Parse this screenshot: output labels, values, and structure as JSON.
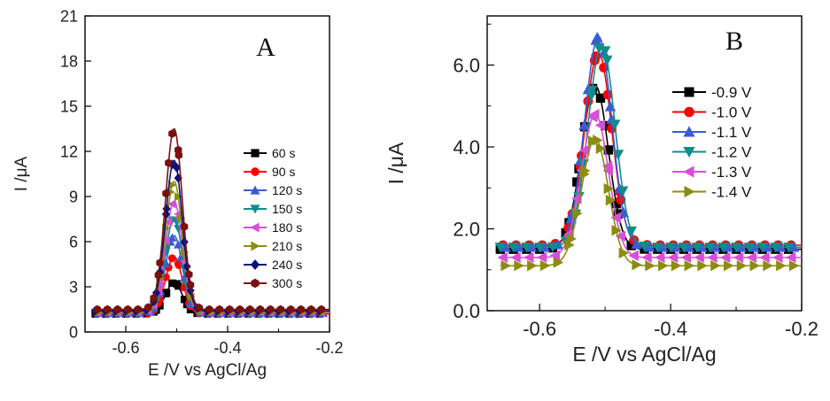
{
  "chart_data": [
    {
      "type": "line",
      "panel_label": "A",
      "xlabel": "E /V vs AgCl/Ag",
      "ylabel": "I /μA",
      "xlim": [
        -0.68,
        -0.2
      ],
      "ylim": [
        0,
        21
      ],
      "xticks": [
        -0.6,
        -0.4,
        -0.2
      ],
      "xtick_labels": [
        "-0.6",
        "-0.4",
        "-0.2"
      ],
      "yticks": [
        0,
        3,
        6,
        9,
        12,
        15,
        18,
        21
      ],
      "ytick_labels": [
        "0",
        "3",
        "6",
        "9",
        "12",
        "15",
        "18",
        "21"
      ],
      "legend_position": "center-right",
      "peak_x": -0.505,
      "series": [
        {
          "name": "60 s",
          "color": "#000000",
          "marker": "square",
          "peak": 3.3,
          "baseline": 1.2
        },
        {
          "name": "90 s",
          "color": "#ff0000",
          "marker": "circle",
          "peak": 5.0,
          "baseline": 1.2
        },
        {
          "name": "120 s",
          "color": "#3b5bd6",
          "marker": "triangle-up",
          "peak": 6.4,
          "baseline": 1.25
        },
        {
          "name": "150 s",
          "color": "#0f8c8c",
          "marker": "triangle-down",
          "peak": 7.6,
          "baseline": 1.3
        },
        {
          "name": "180 s",
          "color": "#d64fd6",
          "marker": "triangle-left",
          "peak": 8.7,
          "baseline": 1.3
        },
        {
          "name": "210 s",
          "color": "#8c8c10",
          "marker": "triangle-right",
          "peak": 10.0,
          "baseline": 1.35
        },
        {
          "name": "240 s",
          "color": "#10107a",
          "marker": "diamond",
          "peak": 11.4,
          "baseline": 1.4
        },
        {
          "name": "300 s",
          "color": "#7a1010",
          "marker": "hexagon",
          "peak": 13.5,
          "baseline": 1.5
        }
      ]
    },
    {
      "type": "line",
      "panel_label": "B",
      "xlabel": "E /V vs AgCl/Ag",
      "ylabel": "I /μA",
      "xlim": [
        -0.68,
        -0.2
      ],
      "ylim": [
        0,
        7.2
      ],
      "xticks": [
        -0.6,
        -0.4,
        -0.2
      ],
      "xtick_labels": [
        "-0.6",
        "-0.4",
        "-0.2"
      ],
      "yticks": [
        0,
        2,
        4,
        6
      ],
      "ytick_labels": [
        "0.0",
        "2.0",
        "4.0",
        "6.0"
      ],
      "legend_position": "top-right",
      "series": [
        {
          "name": "-0.9 V",
          "color": "#000000",
          "marker": "square",
          "peak": 5.5,
          "peak_x": -0.515,
          "baseline": 1.5
        },
        {
          "name": "-1.0 V",
          "color": "#ff0000",
          "marker": "circle",
          "peak": 6.3,
          "peak_x": -0.51,
          "baseline": 1.6
        },
        {
          "name": "-1.1 V",
          "color": "#3b5bd6",
          "marker": "triangle-up",
          "peak": 6.7,
          "peak_x": -0.51,
          "baseline": 1.55
        },
        {
          "name": "-1.2 V",
          "color": "#0f8c8c",
          "marker": "triangle-down",
          "peak": 6.5,
          "peak_x": -0.505,
          "baseline": 1.55
        },
        {
          "name": "-1.3 V",
          "color": "#d64fd6",
          "marker": "triangle-left",
          "peak": 4.8,
          "peak_x": -0.515,
          "baseline": 1.3
        },
        {
          "name": "-1.4 V",
          "color": "#8c8c10",
          "marker": "triangle-right",
          "peak": 4.2,
          "peak_x": -0.515,
          "baseline": 1.1
        }
      ]
    }
  ]
}
